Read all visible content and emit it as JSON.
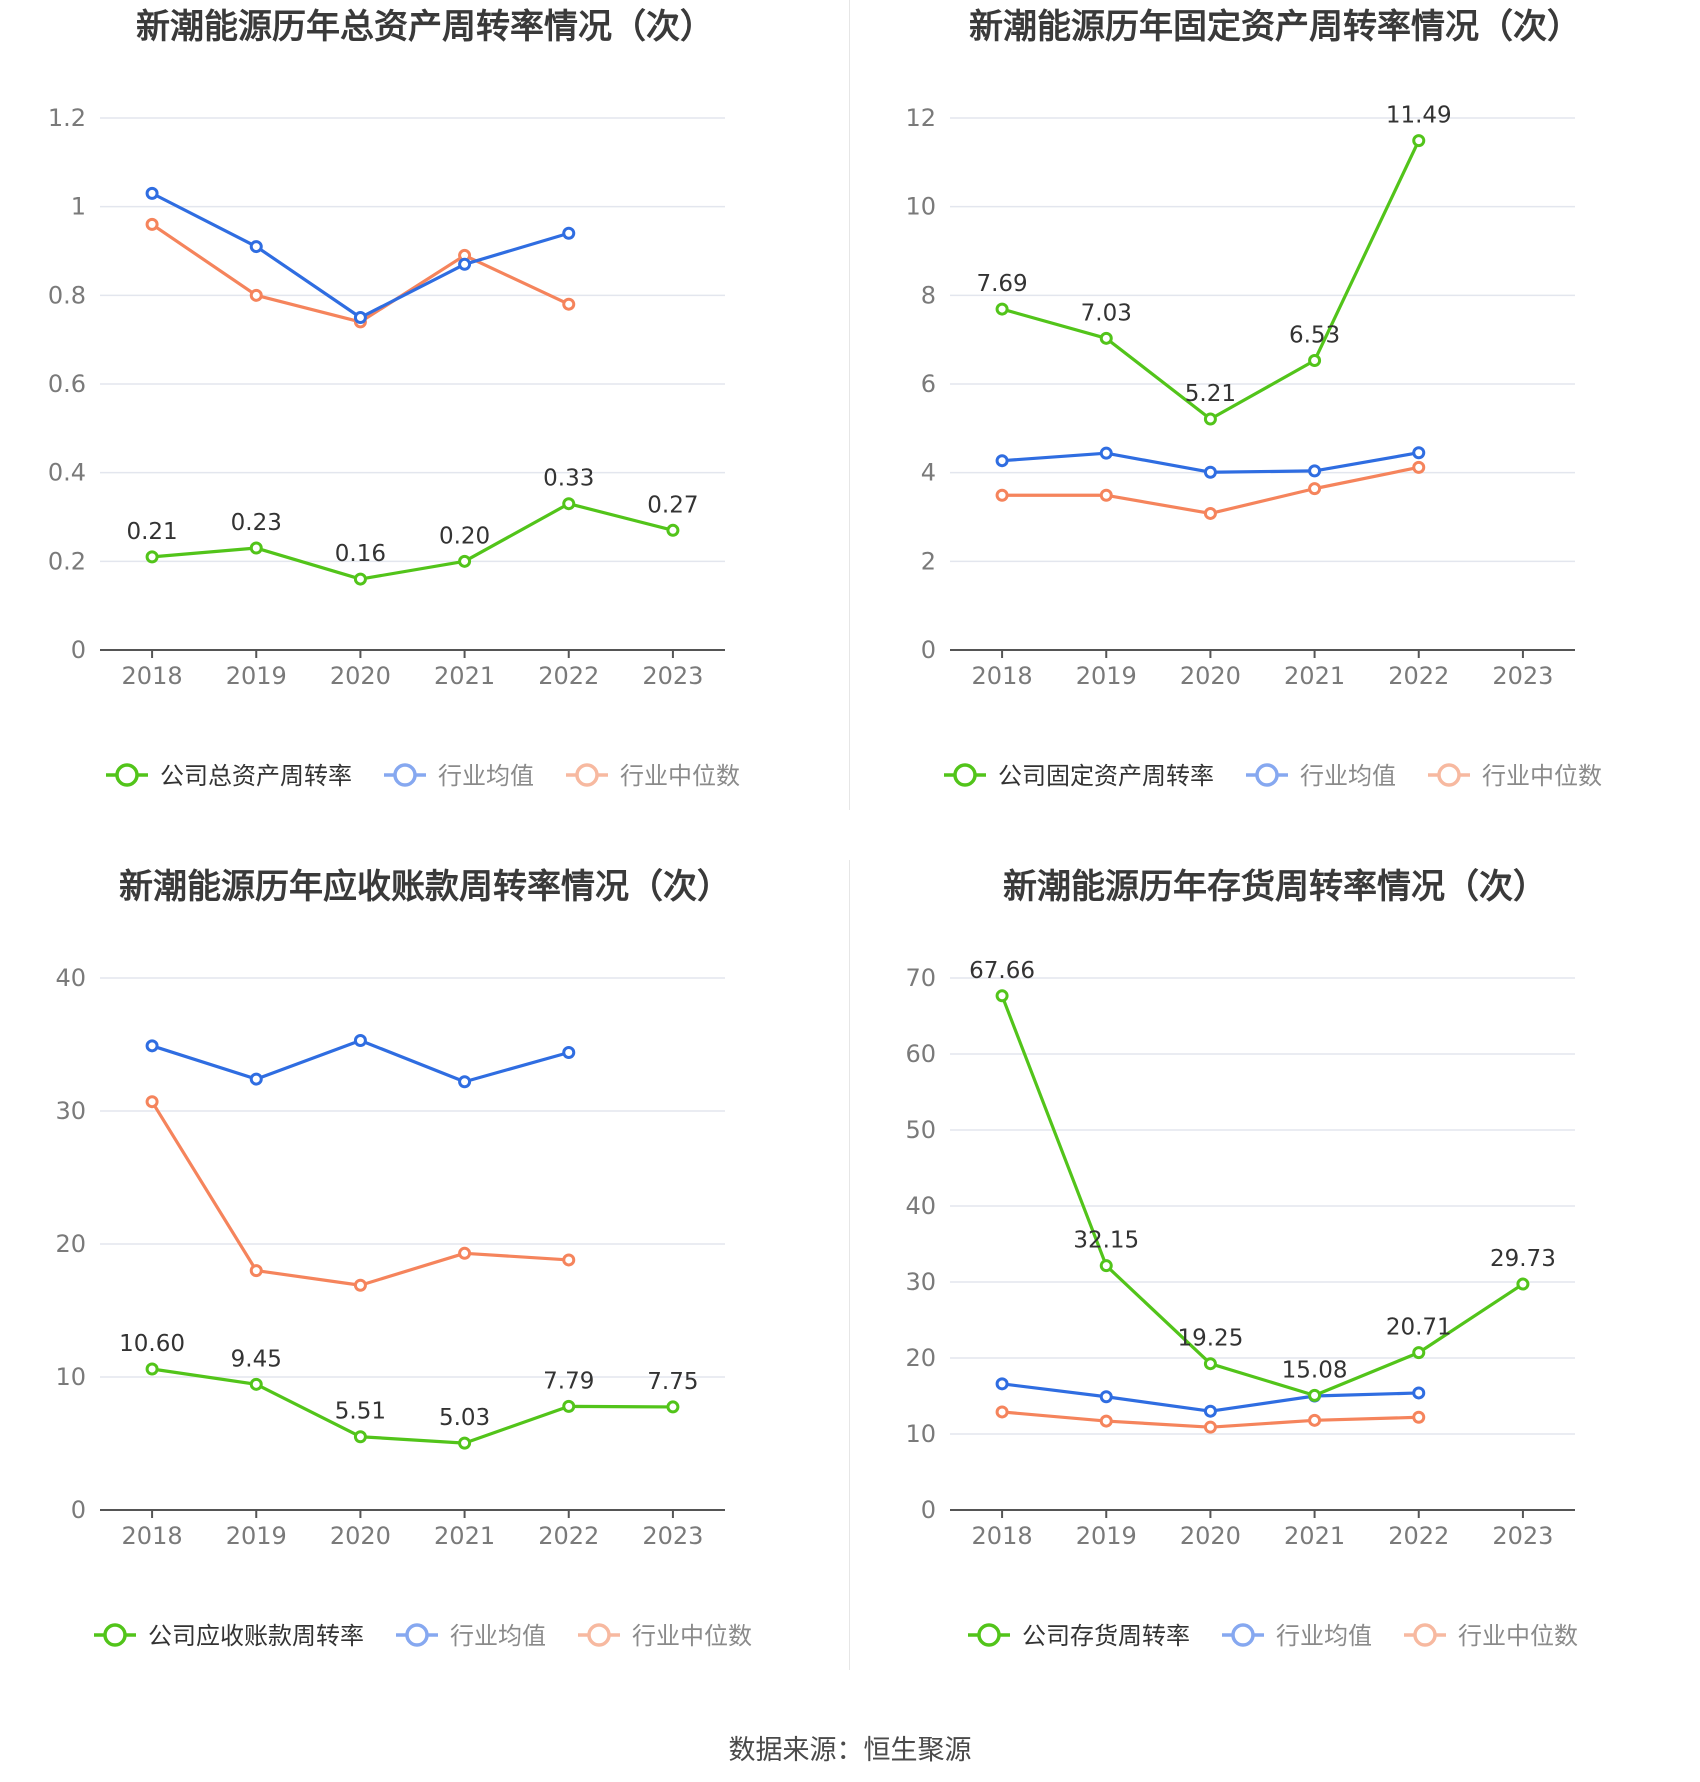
{
  "footer": {
    "source": "数据来源：恒生聚源"
  },
  "colors": {
    "company": "#52c41a",
    "average": "#2f6de1",
    "median": "#f5845c",
    "legend_average": "#86a8f0",
    "legend_median": "#f7b9a0"
  },
  "chart_data": [
    {
      "type": "line",
      "title": "新潮能源历年总资产周转率情况（次）",
      "categories": [
        "2018",
        "2019",
        "2020",
        "2021",
        "2022",
        "2023"
      ],
      "ylim": [
        0,
        1.2
      ],
      "yticks": [
        "0",
        "0.2",
        "0.4",
        "0.6",
        "0.8",
        "1",
        "1.2"
      ],
      "ytick_values": [
        0,
        0.2,
        0.4,
        0.6,
        0.8,
        1.0,
        1.2
      ],
      "grid": true,
      "legend_position": "bottom",
      "series": [
        {
          "name": "公司总资产周转率",
          "role": "company",
          "values": [
            0.21,
            0.23,
            0.16,
            0.2,
            0.33,
            0.27
          ],
          "labels": [
            "0.21",
            "0.23",
            "0.16",
            "0.20",
            "0.33",
            "0.27"
          ]
        },
        {
          "name": "行业均值",
          "role": "average",
          "values": [
            1.03,
            0.91,
            0.75,
            0.87,
            0.94,
            null
          ]
        },
        {
          "name": "行业中位数",
          "role": "median",
          "values": [
            0.96,
            0.8,
            0.74,
            0.89,
            0.78,
            null
          ]
        }
      ]
    },
    {
      "type": "line",
      "title": "新潮能源历年固定资产周转率情况（次）",
      "categories": [
        "2018",
        "2019",
        "2020",
        "2021",
        "2022",
        "2023"
      ],
      "ylim": [
        0,
        12
      ],
      "yticks": [
        "0",
        "2",
        "4",
        "6",
        "8",
        "10",
        "12"
      ],
      "ytick_values": [
        0,
        2,
        4,
        6,
        8,
        10,
        12
      ],
      "grid": true,
      "legend_position": "bottom",
      "series": [
        {
          "name": "公司固定资产周转率",
          "role": "company",
          "values": [
            7.69,
            7.03,
            5.21,
            6.53,
            11.49,
            null
          ],
          "labels": [
            "7.69",
            "7.03",
            "5.21",
            "6.53",
            "11.49",
            ""
          ]
        },
        {
          "name": "行业均值",
          "role": "average",
          "values": [
            4.27,
            4.44,
            4.01,
            4.04,
            4.45,
            null
          ]
        },
        {
          "name": "行业中位数",
          "role": "median",
          "values": [
            3.49,
            3.49,
            3.08,
            3.64,
            4.12,
            null
          ]
        }
      ]
    },
    {
      "type": "line",
      "title": "新潮能源历年应收账款周转率情况（次）",
      "categories": [
        "2018",
        "2019",
        "2020",
        "2021",
        "2022",
        "2023"
      ],
      "ylim": [
        0,
        40
      ],
      "yticks": [
        "0",
        "10",
        "20",
        "30",
        "40"
      ],
      "ytick_values": [
        0,
        10,
        20,
        30,
        40
      ],
      "grid": true,
      "legend_position": "bottom",
      "series": [
        {
          "name": "公司应收账款周转率",
          "role": "company",
          "values": [
            10.6,
            9.45,
            5.51,
            5.03,
            7.79,
            7.75
          ],
          "labels": [
            "10.60",
            "9.45",
            "5.51",
            "5.03",
            "7.79",
            "7.75"
          ]
        },
        {
          "name": "行业均值",
          "role": "average",
          "values": [
            34.9,
            32.4,
            35.3,
            32.2,
            34.4,
            null
          ]
        },
        {
          "name": "行业中位数",
          "role": "median",
          "values": [
            30.7,
            18.0,
            16.9,
            19.3,
            18.8,
            null
          ]
        }
      ]
    },
    {
      "type": "line",
      "title": "新潮能源历年存货周转率情况（次）",
      "categories": [
        "2018",
        "2019",
        "2020",
        "2021",
        "2022",
        "2023"
      ],
      "ylim": [
        0,
        70
      ],
      "yticks": [
        "0",
        "10",
        "20",
        "30",
        "40",
        "50",
        "60",
        "70"
      ],
      "ytick_values": [
        0,
        10,
        20,
        30,
        40,
        50,
        60,
        70
      ],
      "grid": true,
      "legend_position": "bottom",
      "series": [
        {
          "name": "公司存货周转率",
          "role": "company",
          "values": [
            67.66,
            32.15,
            19.25,
            15.08,
            20.71,
            29.73
          ],
          "labels": [
            "67.66",
            "32.15",
            "19.25",
            "15.08",
            "20.71",
            "29.73"
          ]
        },
        {
          "name": "行业均值",
          "role": "average",
          "values": [
            16.6,
            14.9,
            13.0,
            15.0,
            15.4,
            null
          ]
        },
        {
          "name": "行业中位数",
          "role": "median",
          "values": [
            12.9,
            11.7,
            10.9,
            11.8,
            12.2,
            null
          ]
        }
      ]
    }
  ]
}
